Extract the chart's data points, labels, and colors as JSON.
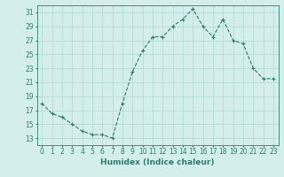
{
  "x": [
    0,
    1,
    2,
    3,
    4,
    5,
    6,
    7,
    8,
    9,
    10,
    11,
    12,
    13,
    14,
    15,
    16,
    17,
    18,
    19,
    20,
    21,
    22,
    23
  ],
  "y": [
    18,
    16.5,
    16,
    15,
    14,
    13.5,
    13.5,
    13,
    18,
    22.5,
    25.5,
    27.5,
    27.5,
    29,
    30,
    31.5,
    29,
    27.5,
    30,
    27,
    26.5,
    23,
    21.5,
    21.5
  ],
  "line_color": "#2e7d6e",
  "marker": "+",
  "bg_color": "#d4eeec",
  "grid_color": "#b0d8d5",
  "title": "",
  "xlabel": "Humidex (Indice chaleur)",
  "ylabel": "",
  "xlim": [
    -0.5,
    23.5
  ],
  "ylim": [
    12,
    32
  ],
  "yticks": [
    13,
    15,
    17,
    19,
    21,
    23,
    25,
    27,
    29,
    31
  ],
  "xticks": [
    0,
    1,
    2,
    3,
    4,
    5,
    6,
    7,
    8,
    9,
    10,
    11,
    12,
    13,
    14,
    15,
    16,
    17,
    18,
    19,
    20,
    21,
    22,
    23
  ],
  "tick_color": "#2e7d6e",
  "label_fontsize": 6.5,
  "tick_fontsize": 5.5,
  "linewidth": 0.8,
  "markersize": 3,
  "markeredgewidth": 0.8
}
